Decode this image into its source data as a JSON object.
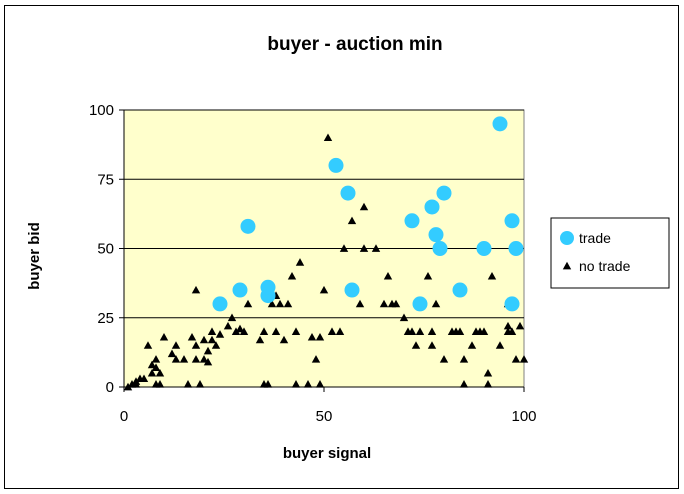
{
  "chart_data": {
    "type": "scatter",
    "title": "buyer - auction min",
    "xlabel": "buyer signal",
    "ylabel": "buyer bid",
    "xlim": [
      0,
      100
    ],
    "ylim": [
      0,
      100
    ],
    "x_ticks": [
      0,
      50,
      100
    ],
    "y_ticks": [
      0,
      25,
      50,
      75,
      100
    ],
    "grid": "horizontal",
    "plot_background": "#FFFFCC",
    "legend_position": "right",
    "series": [
      {
        "name": "trade",
        "marker": "circle",
        "color": "#33CCFF",
        "points": [
          [
            24,
            30
          ],
          [
            29,
            35
          ],
          [
            31,
            58
          ],
          [
            36,
            33
          ],
          [
            36,
            36
          ],
          [
            53,
            80
          ],
          [
            56,
            70
          ],
          [
            57,
            35
          ],
          [
            72,
            60
          ],
          [
            74,
            30
          ],
          [
            77,
            65
          ],
          [
            78,
            55
          ],
          [
            79,
            50
          ],
          [
            80,
            70
          ],
          [
            84,
            35
          ],
          [
            90,
            50
          ],
          [
            94,
            95
          ],
          [
            97,
            60
          ],
          [
            97,
            30
          ],
          [
            98,
            50
          ]
        ]
      },
      {
        "name": "no trade",
        "marker": "triangle",
        "color": "#000000",
        "points": [
          [
            1,
            0
          ],
          [
            2,
            1
          ],
          [
            3,
            1
          ],
          [
            3,
            2
          ],
          [
            4,
            3
          ],
          [
            5,
            3
          ],
          [
            6,
            15
          ],
          [
            7,
            5
          ],
          [
            7,
            8
          ],
          [
            8,
            10
          ],
          [
            8,
            7
          ],
          [
            8,
            1
          ],
          [
            9,
            1
          ],
          [
            9,
            5
          ],
          [
            10,
            18
          ],
          [
            12,
            12
          ],
          [
            13,
            15
          ],
          [
            13,
            10
          ],
          [
            15,
            10
          ],
          [
            16,
            1
          ],
          [
            17,
            18
          ],
          [
            18,
            35
          ],
          [
            18,
            15
          ],
          [
            18,
            10
          ],
          [
            19,
            1
          ],
          [
            20,
            17
          ],
          [
            20,
            10
          ],
          [
            21,
            9
          ],
          [
            21,
            13
          ],
          [
            22,
            17
          ],
          [
            22,
            20
          ],
          [
            23,
            15
          ],
          [
            24,
            19
          ],
          [
            26,
            22
          ],
          [
            27,
            25
          ],
          [
            28,
            20
          ],
          [
            29,
            21
          ],
          [
            30,
            20
          ],
          [
            31,
            30
          ],
          [
            34,
            17
          ],
          [
            35,
            20
          ],
          [
            35,
            1
          ],
          [
            36,
            1
          ],
          [
            37,
            30
          ],
          [
            38,
            20
          ],
          [
            38,
            33
          ],
          [
            39,
            30
          ],
          [
            40,
            17
          ],
          [
            41,
            30
          ],
          [
            42,
            40
          ],
          [
            43,
            20
          ],
          [
            43,
            1
          ],
          [
            44,
            45
          ],
          [
            46,
            1
          ],
          [
            47,
            18
          ],
          [
            48,
            10
          ],
          [
            49,
            18
          ],
          [
            49,
            1
          ],
          [
            50,
            35
          ],
          [
            51,
            90
          ],
          [
            52,
            20
          ],
          [
            54,
            20
          ],
          [
            55,
            50
          ],
          [
            57,
            60
          ],
          [
            59,
            30
          ],
          [
            60,
            65
          ],
          [
            60,
            50
          ],
          [
            63,
            50
          ],
          [
            65,
            30
          ],
          [
            66,
            40
          ],
          [
            67,
            30
          ],
          [
            68,
            30
          ],
          [
            70,
            25
          ],
          [
            71,
            20
          ],
          [
            72,
            20
          ],
          [
            73,
            15
          ],
          [
            74,
            20
          ],
          [
            76,
            40
          ],
          [
            77,
            20
          ],
          [
            77,
            15
          ],
          [
            78,
            30
          ],
          [
            80,
            10
          ],
          [
            82,
            20
          ],
          [
            83,
            20
          ],
          [
            84,
            20
          ],
          [
            85,
            1
          ],
          [
            85,
            10
          ],
          [
            87,
            15
          ],
          [
            88,
            20
          ],
          [
            89,
            20
          ],
          [
            90,
            20
          ],
          [
            91,
            5
          ],
          [
            91,
            1
          ],
          [
            92,
            40
          ],
          [
            94,
            15
          ],
          [
            96,
            20
          ],
          [
            96,
            22
          ],
          [
            96,
            30
          ],
          [
            97,
            30
          ],
          [
            97,
            20
          ],
          [
            98,
            10
          ],
          [
            99,
            22
          ],
          [
            100,
            10
          ]
        ]
      }
    ]
  }
}
